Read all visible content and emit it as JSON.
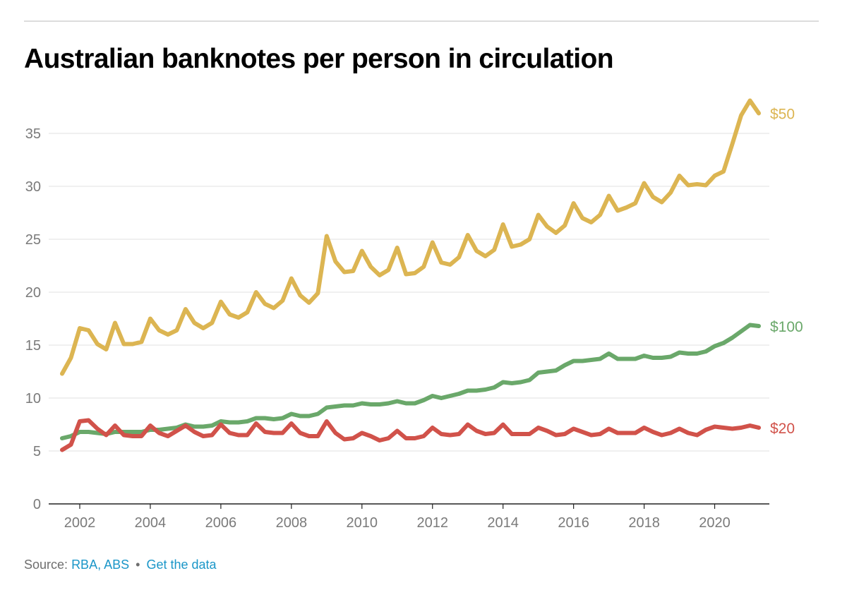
{
  "title": "Australian banknotes per person in circulation",
  "footer": {
    "source_label": "Source:",
    "source_link": "RBA, ABS",
    "separator": "•",
    "data_link": "Get the data"
  },
  "chart_data": {
    "type": "line",
    "title": "Australian banknotes per person in circulation",
    "xlabel": "",
    "ylabel": "",
    "xlim": [
      2001.5,
      2021.25
    ],
    "ylim": [
      0,
      38
    ],
    "yticks": [
      0,
      5,
      10,
      15,
      20,
      25,
      30,
      35
    ],
    "xticks": [
      2002,
      2004,
      2006,
      2008,
      2010,
      2012,
      2014,
      2016,
      2018,
      2020
    ],
    "grid": true,
    "legend": "direct labels at line ends (right)",
    "x": [
      2001.5,
      2001.75,
      2002,
      2002.25,
      2002.5,
      2002.75,
      2003,
      2003.25,
      2003.5,
      2003.75,
      2004,
      2004.25,
      2004.5,
      2004.75,
      2005,
      2005.25,
      2005.5,
      2005.75,
      2006,
      2006.25,
      2006.5,
      2006.75,
      2007,
      2007.25,
      2007.5,
      2007.75,
      2008,
      2008.25,
      2008.5,
      2008.75,
      2009,
      2009.25,
      2009.5,
      2009.75,
      2010,
      2010.25,
      2010.5,
      2010.75,
      2011,
      2011.25,
      2011.5,
      2011.75,
      2012,
      2012.25,
      2012.5,
      2012.75,
      2013,
      2013.25,
      2013.5,
      2013.75,
      2014,
      2014.25,
      2014.5,
      2014.75,
      2015,
      2015.25,
      2015.5,
      2015.75,
      2016,
      2016.25,
      2016.5,
      2016.75,
      2017,
      2017.25,
      2017.5,
      2017.75,
      2018,
      2018.25,
      2018.5,
      2018.75,
      2019,
      2019.25,
      2019.5,
      2019.75,
      2020,
      2020.25,
      2020.5,
      2020.75,
      2021,
      2021.25
    ],
    "series": [
      {
        "name": "$50",
        "color": "#dcb552",
        "values": [
          12.3,
          13.8,
          16.6,
          16.4,
          15.1,
          14.6,
          17.1,
          15.1,
          15.1,
          15.3,
          17.5,
          16.4,
          16.0,
          16.4,
          18.4,
          17.1,
          16.6,
          17.1,
          19.1,
          17.9,
          17.6,
          18.1,
          20.0,
          18.9,
          18.5,
          19.2,
          21.3,
          19.7,
          19.0,
          19.9,
          25.3,
          22.9,
          21.9,
          22.0,
          23.9,
          22.4,
          21.6,
          22.1,
          24.2,
          21.7,
          21.8,
          22.4,
          24.7,
          22.8,
          22.6,
          23.3,
          25.4,
          23.9,
          23.4,
          24.0,
          26.4,
          24.3,
          24.5,
          25.0,
          27.3,
          26.2,
          25.6,
          26.3,
          28.4,
          27.0,
          26.6,
          27.3,
          29.1,
          27.7,
          28.0,
          28.4,
          30.3,
          29.0,
          28.5,
          29.4,
          31.0,
          30.1,
          30.2,
          30.1,
          31.0,
          31.4,
          34.0,
          36.7,
          38.1,
          36.9
        ]
      },
      {
        "name": "$100",
        "color": "#6aa86a",
        "values": [
          6.2,
          6.4,
          6.8,
          6.8,
          6.7,
          6.6,
          6.8,
          6.8,
          6.8,
          6.8,
          7.0,
          7.0,
          7.1,
          7.2,
          7.5,
          7.3,
          7.3,
          7.4,
          7.8,
          7.7,
          7.7,
          7.8,
          8.1,
          8.1,
          8.0,
          8.1,
          8.5,
          8.3,
          8.3,
          8.5,
          9.1,
          9.2,
          9.3,
          9.3,
          9.5,
          9.4,
          9.4,
          9.5,
          9.7,
          9.5,
          9.5,
          9.8,
          10.2,
          10.0,
          10.2,
          10.4,
          10.7,
          10.7,
          10.8,
          11.0,
          11.5,
          11.4,
          11.5,
          11.7,
          12.4,
          12.5,
          12.6,
          13.1,
          13.5,
          13.5,
          13.6,
          13.7,
          14.2,
          13.7,
          13.7,
          13.7,
          14.0,
          13.8,
          13.8,
          13.9,
          14.3,
          14.2,
          14.2,
          14.4,
          14.9,
          15.2,
          15.7,
          16.3,
          16.9,
          16.8
        ]
      },
      {
        "name": "$20",
        "color": "#d1524a",
        "values": [
          5.1,
          5.6,
          7.8,
          7.9,
          7.1,
          6.5,
          7.4,
          6.5,
          6.4,
          6.4,
          7.4,
          6.7,
          6.4,
          6.9,
          7.4,
          6.8,
          6.4,
          6.5,
          7.5,
          6.7,
          6.5,
          6.5,
          7.6,
          6.8,
          6.7,
          6.7,
          7.6,
          6.7,
          6.4,
          6.4,
          7.8,
          6.7,
          6.1,
          6.2,
          6.7,
          6.4,
          6.0,
          6.2,
          6.9,
          6.2,
          6.2,
          6.4,
          7.2,
          6.6,
          6.5,
          6.6,
          7.5,
          6.9,
          6.6,
          6.7,
          7.5,
          6.6,
          6.6,
          6.6,
          7.2,
          6.9,
          6.5,
          6.6,
          7.1,
          6.8,
          6.5,
          6.6,
          7.1,
          6.7,
          6.7,
          6.7,
          7.2,
          6.8,
          6.5,
          6.7,
          7.1,
          6.7,
          6.5,
          7.0,
          7.3,
          7.2,
          7.1,
          7.2,
          7.4,
          7.2
        ]
      }
    ]
  }
}
